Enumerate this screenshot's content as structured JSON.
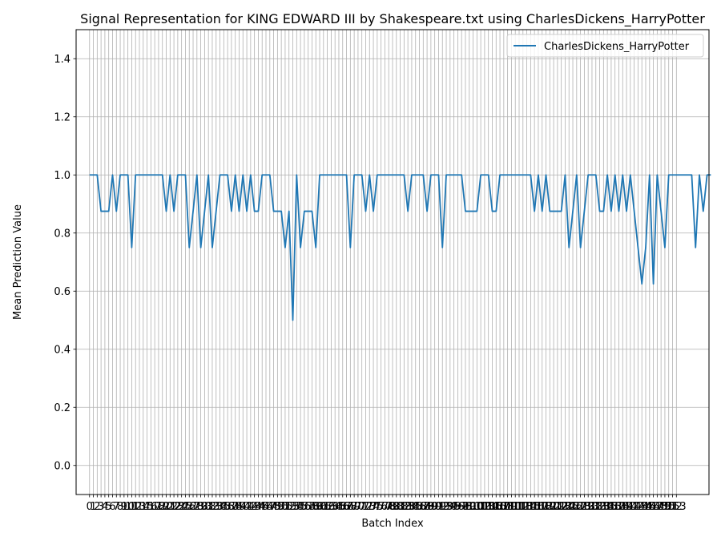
{
  "chart_data": {
    "type": "line",
    "title": "Signal Representation for KING EDWARD III by Shakespeare.txt using CharlesDickens_HarryPotter",
    "xlabel": "Batch Index",
    "ylabel": "Mean Prediction Value",
    "ylim": [
      -0.1,
      1.5
    ],
    "yticks": [
      0.0,
      0.2,
      0.4,
      0.6,
      0.8,
      1.0,
      1.2,
      1.4
    ],
    "xlim": [
      -3.5,
      161.5
    ],
    "x_tick_first": 0,
    "x_tick_last": 153,
    "grid": true,
    "legend_position": "top-right",
    "series": [
      {
        "name": "CharlesDickens_HarryPotter",
        "color": "#1f77b4",
        "values": [
          1,
          1,
          1,
          0.875,
          0.875,
          0.875,
          1,
          0.875,
          1,
          1,
          1,
          0.75,
          1,
          1,
          1,
          1,
          1,
          1,
          1,
          1,
          0.875,
          1,
          0.875,
          1,
          1,
          1,
          0.75,
          0.875,
          1,
          0.75,
          0.875,
          1,
          0.75,
          0.875,
          1,
          1,
          1,
          0.875,
          1,
          0.875,
          1,
          0.875,
          1,
          0.875,
          0.875,
          1,
          1,
          1,
          0.875,
          0.875,
          0.875,
          0.75,
          0.875,
          0.5,
          1,
          0.75,
          0.875,
          0.875,
          0.875,
          0.75,
          1,
          1,
          1,
          1,
          1,
          1,
          1,
          1,
          0.75,
          1,
          1,
          1,
          0.875,
          1,
          0.875,
          1,
          1,
          1,
          1,
          1,
          1,
          1,
          1,
          0.875,
          1,
          1,
          1,
          1,
          0.875,
          1,
          1,
          1,
          0.75,
          1,
          1,
          1,
          1,
          1,
          0.875,
          0.875,
          0.875,
          0.875,
          1,
          1,
          1,
          0.875,
          0.875,
          1,
          1,
          1,
          1,
          1,
          1,
          1,
          1,
          1,
          0.875,
          1,
          0.875,
          1,
          0.875,
          0.875,
          0.875,
          0.875,
          1,
          0.75,
          0.875,
          1,
          0.75,
          0.875,
          1,
          1,
          1,
          0.875,
          0.875,
          1,
          0.875,
          1,
          0.875,
          1,
          0.875,
          1,
          0.875,
          0.75,
          0.625,
          0.75,
          1,
          0.625,
          1,
          0.875,
          0.75,
          1,
          1,
          1,
          1,
          1,
          1,
          1,
          0.75,
          1,
          0.875,
          1,
          1
        ]
      }
    ]
  }
}
